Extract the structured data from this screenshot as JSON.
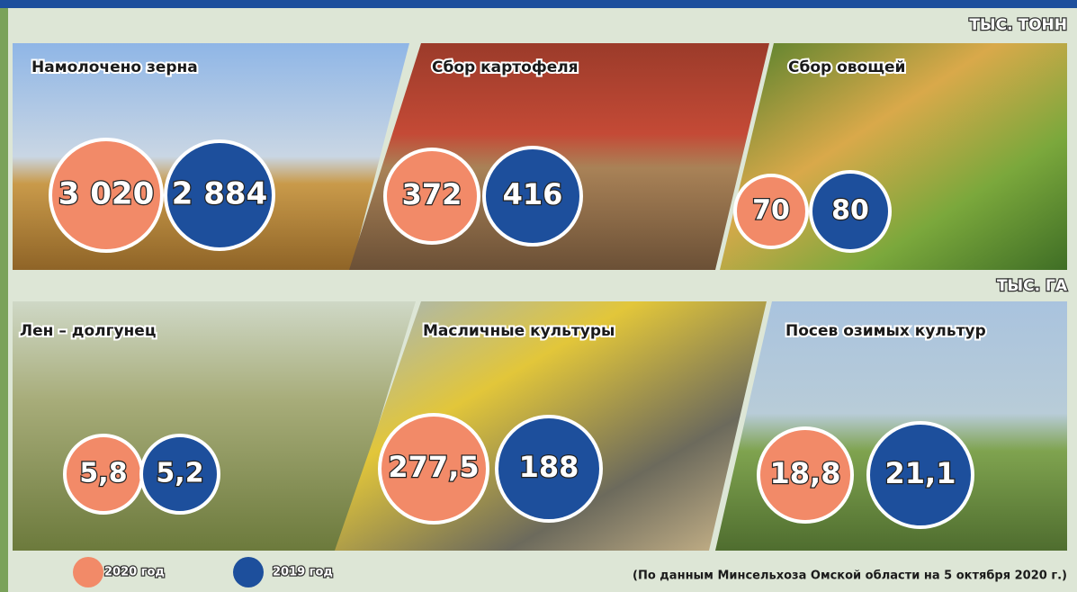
{
  "units_top": "ТЫС. ТОНН",
  "units_bottom": "ТЫС. ГА",
  "panels": [
    {
      "title": "Намолочено зерна",
      "value_2020": "3 020",
      "value_2019": "2 884"
    },
    {
      "title": "Сбор картофеля",
      "value_2020": "372",
      "value_2019": "416"
    },
    {
      "title": "Сбор овощей",
      "value_2020": "70",
      "value_2019": "80"
    },
    {
      "title": "Лен – долгунец",
      "value_2020": "5,8",
      "value_2019": "5,2"
    },
    {
      "title": "Масличные культуры",
      "value_2020": "277,5",
      "value_2019": "188"
    },
    {
      "title": "Посев озимых культур",
      "value_2020": "18,8",
      "value_2019": "21,1"
    }
  ],
  "legend": [
    "2020 год",
    "2019 год"
  ],
  "source": "(По данным Минсельхоза Омской области на 5 октября 2020 г.)"
}
